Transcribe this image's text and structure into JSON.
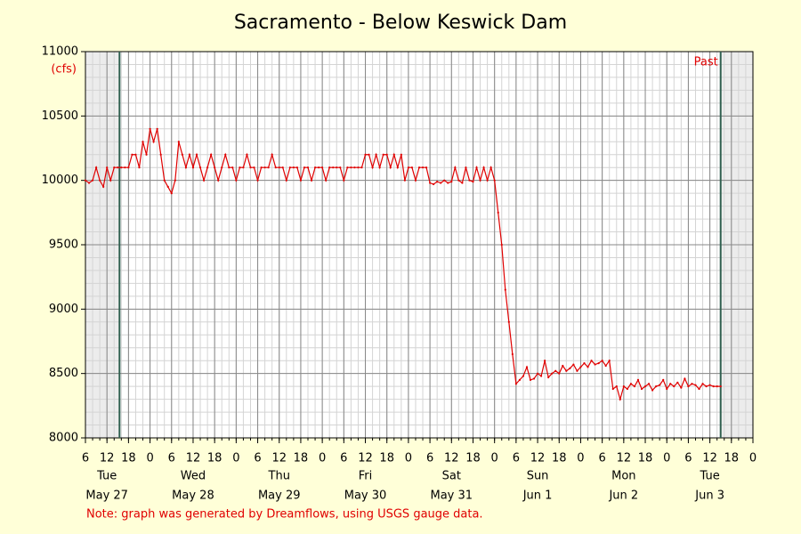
{
  "chart_data": {
    "type": "line",
    "title": "Sacramento - Below Keswick Dam",
    "y_label": "(cfs)",
    "past_label": "Past",
    "note": "Note: graph was generated by Dreamflows, using USGS gauge data.",
    "color": "#e00000",
    "grid": true,
    "x_minor_step": 2,
    "y_minor_step": 100,
    "window": [
      15.5,
      183
    ],
    "xlim": [
      6,
      192
    ],
    "ylim": [
      8000,
      11000
    ],
    "yticks": [
      8000,
      8500,
      9000,
      9500,
      10000,
      10500,
      11000
    ],
    "xticks": [
      6,
      12,
      18,
      {
        "value": 24,
        "label": "0"
      },
      {
        "value": 30,
        "label": "6"
      },
      {
        "value": 36,
        "label": "12"
      },
      {
        "value": 42,
        "label": "18"
      },
      {
        "value": 48,
        "label": "0"
      },
      {
        "value": 54,
        "label": "6"
      },
      {
        "value": 60,
        "label": "12"
      },
      {
        "value": 66,
        "label": "18"
      },
      {
        "value": 72,
        "label": "0"
      },
      {
        "value": 78,
        "label": "6"
      },
      {
        "value": 84,
        "label": "12"
      },
      {
        "value": 90,
        "label": "18"
      },
      {
        "value": 96,
        "label": "0"
      },
      {
        "value": 102,
        "label": "6"
      },
      {
        "value": 108,
        "label": "12"
      },
      {
        "value": 114,
        "label": "18"
      },
      {
        "value": 120,
        "label": "0"
      },
      {
        "value": 126,
        "label": "6"
      },
      {
        "value": 132,
        "label": "12"
      },
      {
        "value": 138,
        "label": "18"
      },
      {
        "value": 144,
        "label": "0"
      },
      {
        "value": 150,
        "label": "6"
      },
      {
        "value": 156,
        "label": "12"
      },
      {
        "value": 162,
        "label": "18"
      },
      {
        "value": 168,
        "label": "0"
      },
      {
        "value": 174,
        "label": "6"
      },
      {
        "value": 180,
        "label": "12"
      },
      {
        "value": 186,
        "label": "18"
      },
      {
        "value": 192,
        "label": "0"
      }
    ],
    "day_ticks": [
      {
        "value": 12,
        "day": "Tue",
        "date": "May 27"
      },
      {
        "value": 36,
        "day": "Wed",
        "date": "May 28"
      },
      {
        "value": 60,
        "day": "Thu",
        "date": "May 29"
      },
      {
        "value": 84,
        "day": "Fri",
        "date": "May 30"
      },
      {
        "value": 108,
        "day": "Sat",
        "date": "May 31"
      },
      {
        "value": 132,
        "day": "Sun",
        "date": "Jun 1"
      },
      {
        "value": 156,
        "day": "Mon",
        "date": "Jun 2"
      },
      {
        "value": 180,
        "day": "Tue",
        "date": "Jun 3"
      }
    ],
    "x": [
      6,
      7,
      8,
      9,
      10,
      11,
      12,
      13,
      14,
      15,
      16,
      17,
      18,
      19,
      20,
      21,
      22,
      23,
      24,
      25,
      26,
      27,
      28,
      29,
      30,
      31,
      32,
      33,
      34,
      35,
      36,
      37,
      38,
      39,
      40,
      41,
      42,
      43,
      44,
      45,
      46,
      47,
      48,
      49,
      50,
      51,
      52,
      53,
      54,
      55,
      56,
      57,
      58,
      59,
      60,
      61,
      62,
      63,
      64,
      65,
      66,
      67,
      68,
      69,
      70,
      71,
      72,
      73,
      74,
      75,
      76,
      77,
      78,
      79,
      80,
      81,
      82,
      83,
      84,
      85,
      86,
      87,
      88,
      89,
      90,
      91,
      92,
      93,
      94,
      95,
      96,
      97,
      98,
      99,
      100,
      101,
      102,
      103,
      104,
      105,
      106,
      107,
      108,
      109,
      110,
      111,
      112,
      113,
      114,
      115,
      116,
      117,
      118,
      119,
      120,
      121,
      122,
      123,
      124,
      125,
      126,
      127,
      128,
      129,
      130,
      131,
      132,
      133,
      134,
      135,
      136,
      137,
      138,
      139,
      140,
      141,
      142,
      143,
      144,
      145,
      146,
      147,
      148,
      149,
      150,
      151,
      152,
      153,
      154,
      155,
      156,
      157,
      158,
      159,
      160,
      161,
      162,
      163,
      164,
      165,
      166,
      167,
      168,
      169,
      170,
      171,
      172,
      173,
      174,
      175,
      176,
      177,
      178,
      179,
      180,
      181,
      182,
      183
    ],
    "values": [
      10000,
      9980,
      10000,
      10100,
      10000,
      9950,
      10100,
      10000,
      10100,
      10100,
      10100,
      10100,
      10100,
      10200,
      10200,
      10100,
      10300,
      10200,
      10400,
      10300,
      10400,
      10200,
      10000,
      9950,
      9900,
      10000,
      10300,
      10200,
      10100,
      10200,
      10100,
      10200,
      10100,
      10000,
      10100,
      10200,
      10100,
      10000,
      10100,
      10200,
      10100,
      10100,
      10000,
      10100,
      10100,
      10200,
      10100,
      10100,
      10000,
      10100,
      10100,
      10100,
      10200,
      10100,
      10100,
      10100,
      10000,
      10100,
      10100,
      10100,
      10000,
      10100,
      10100,
      10000,
      10100,
      10100,
      10100,
      10000,
      10100,
      10100,
      10100,
      10100,
      10000,
      10100,
      10100,
      10100,
      10100,
      10100,
      10200,
      10200,
      10100,
      10200,
      10100,
      10200,
      10200,
      10100,
      10200,
      10100,
      10200,
      10000,
      10100,
      10100,
      10000,
      10100,
      10100,
      10100,
      9980,
      9970,
      9990,
      9980,
      10000,
      9980,
      9990,
      10100,
      10000,
      9980,
      10100,
      10000,
      9990,
      10100,
      10000,
      10100,
      10000,
      10100,
      10000,
      9750,
      9500,
      9150,
      8900,
      8650,
      8420,
      8450,
      8480,
      8550,
      8450,
      8460,
      8500,
      8480,
      8600,
      8470,
      8500,
      8520,
      8500,
      8560,
      8520,
      8540,
      8570,
      8520,
      8550,
      8580,
      8550,
      8600,
      8570,
      8580,
      8600,
      8560,
      8600,
      8380,
      8400,
      8300,
      8400,
      8380,
      8420,
      8400,
      8450,
      8380,
      8400,
      8420,
      8370,
      8400,
      8410,
      8450,
      8380,
      8420,
      8400,
      8430,
      8390,
      8460,
      8400,
      8420,
      8410,
      8380,
      8420,
      8400,
      8410,
      8400,
      8400,
      8400
    ]
  }
}
